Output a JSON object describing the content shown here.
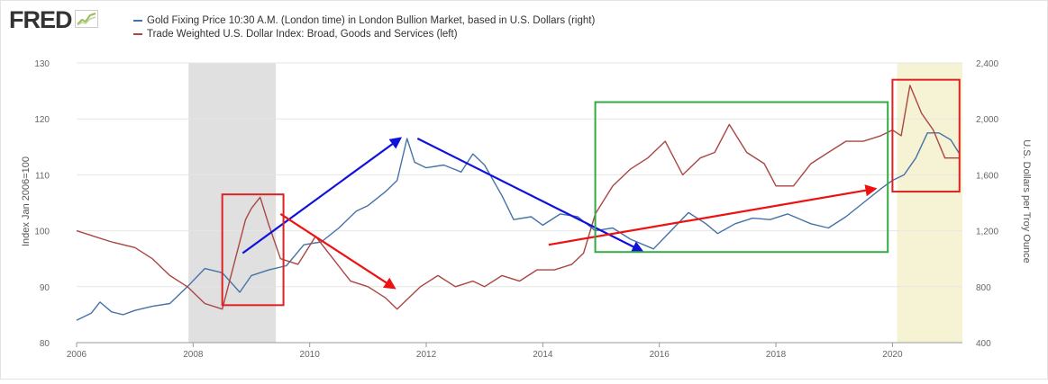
{
  "logo": {
    "text": "FRED"
  },
  "colors": {
    "gold": "#4572a7",
    "usd": "#aa4643",
    "recession": "#e0e0e0",
    "highlight": "#f6f2d4",
    "arrow_blue": "#1111dd",
    "arrow_red": "#ee1111",
    "box_red": "#dd2222",
    "box_green": "#33aa44",
    "grid": "#e6e6e6"
  },
  "chart_data": {
    "type": "line",
    "legend": [
      {
        "name": "Gold Fixing Price 10:30 A.M. (London time) in London Bullion Market, based in U.S. Dollars (right)",
        "color": "#4572a7"
      },
      {
        "name": "Trade Weighted U.S. Dollar Index: Broad, Goods and Services (left)",
        "color": "#aa4643"
      }
    ],
    "ylabel_left": "Index Jan 2006=100",
    "ylabel_right": "U.S. Dollars per Troy Ounce",
    "ylim_left": [
      80,
      130
    ],
    "ylim_right": [
      400,
      2400
    ],
    "xlim": [
      2006,
      2021.2
    ],
    "x_ticks": [
      "2006",
      "2008",
      "2010",
      "2012",
      "2014",
      "2016",
      "2018",
      "2020"
    ],
    "y_left_ticks": [
      "80",
      "90",
      "100",
      "110",
      "120",
      "130"
    ],
    "y_right_ticks": [
      "400",
      "800",
      "1,200",
      "1,600",
      "2,000",
      "2,400"
    ],
    "grid": "horizontal",
    "recession_bands": [
      [
        2007.92,
        2009.42
      ],
      [
        2020.08,
        2021.2
      ]
    ],
    "series": [
      {
        "name": "Gold Fixing Price 10:30 A.M. (London time) in London Bullion Market, based in U.S. Dollars (right)",
        "axis": "right",
        "x": [
          2006.0,
          2006.25,
          2006.4,
          2006.6,
          2006.8,
          2007.0,
          2007.3,
          2007.6,
          2007.9,
          2008.2,
          2008.5,
          2008.8,
          2009.0,
          2009.3,
          2009.6,
          2009.9,
          2010.2,
          2010.5,
          2010.8,
          2011.0,
          2011.3,
          2011.5,
          2011.67,
          2011.8,
          2012.0,
          2012.3,
          2012.6,
          2012.8,
          2013.0,
          2013.3,
          2013.5,
          2013.8,
          2014.0,
          2014.3,
          2014.6,
          2014.9,
          2015.2,
          2015.5,
          2015.9,
          2016.2,
          2016.5,
          2016.8,
          2017.0,
          2017.3,
          2017.6,
          2017.9,
          2018.2,
          2018.6,
          2018.9,
          2019.2,
          2019.5,
          2019.8,
          2020.0,
          2020.2,
          2020.4,
          2020.6,
          2020.8,
          2021.0,
          2021.15
        ],
        "y": [
          560,
          610,
          690,
          620,
          600,
          630,
          660,
          680,
          800,
          930,
          900,
          760,
          880,
          920,
          950,
          1100,
          1120,
          1220,
          1340,
          1380,
          1480,
          1560,
          1860,
          1690,
          1650,
          1670,
          1620,
          1750,
          1670,
          1450,
          1280,
          1300,
          1240,
          1320,
          1300,
          1200,
          1220,
          1140,
          1070,
          1200,
          1330,
          1250,
          1180,
          1250,
          1290,
          1280,
          1320,
          1250,
          1220,
          1300,
          1400,
          1500,
          1560,
          1600,
          1720,
          1900,
          1900,
          1850,
          1750
        ]
      },
      {
        "name": "Trade Weighted U.S. Dollar Index: Broad, Goods and Services (left)",
        "axis": "left",
        "x": [
          2006.0,
          2006.3,
          2006.6,
          2007.0,
          2007.3,
          2007.6,
          2007.9,
          2008.2,
          2008.5,
          2008.7,
          2008.9,
          2009.0,
          2009.15,
          2009.3,
          2009.5,
          2009.8,
          2010.1,
          2010.4,
          2010.7,
          2011.0,
          2011.3,
          2011.5,
          2011.7,
          2011.9,
          2012.2,
          2012.5,
          2012.8,
          2013.0,
          2013.3,
          2013.6,
          2013.9,
          2014.2,
          2014.5,
          2014.7,
          2014.9,
          2015.2,
          2015.5,
          2015.8,
          2016.1,
          2016.4,
          2016.7,
          2016.95,
          2017.2,
          2017.5,
          2017.8,
          2018.0,
          2018.3,
          2018.6,
          2018.9,
          2019.2,
          2019.5,
          2019.8,
          2020.0,
          2020.15,
          2020.3,
          2020.5,
          2020.7,
          2020.9,
          2021.15
        ],
        "y": [
          100,
          99,
          98,
          97,
          95,
          92,
          90,
          87,
          86,
          94,
          102,
          104,
          106,
          101,
          95,
          94,
          99,
          95,
          91,
          90,
          88,
          86,
          88,
          90,
          92,
          90,
          91,
          90,
          92,
          91,
          93,
          93,
          94,
          96,
          103,
          108,
          111,
          113,
          116,
          110,
          113,
          114,
          119,
          114,
          112,
          108,
          108,
          112,
          114,
          116,
          116,
          117,
          118,
          117,
          126,
          121,
          118,
          113,
          113
        ]
      }
    ],
    "annotations": [
      {
        "type": "arrow",
        "color": "blue",
        "from": [
          2008.85,
          1040
        ],
        "to": [
          2011.55,
          1860
        ]
      },
      {
        "type": "arrow",
        "color": "blue",
        "from": [
          2011.85,
          1860
        ],
        "to": [
          2015.7,
          1055
        ]
      },
      {
        "type": "arrow",
        "color": "red",
        "from": [
          2009.5,
          103
        ],
        "to": [
          2011.45,
          89.8
        ]
      },
      {
        "type": "arrow",
        "color": "red",
        "from": [
          2014.1,
          97.5
        ],
        "to": [
          2019.7,
          107.5
        ]
      },
      {
        "type": "box",
        "color": "red",
        "x0": 2008.5,
        "x1": 2009.55,
        "y0_left": 86.7,
        "y1_left": 106.5
      },
      {
        "type": "box",
        "color": "green",
        "x0": 2014.9,
        "x1": 2019.92,
        "y0_left": 96.2,
        "y1_left": 123
      },
      {
        "type": "box",
        "color": "red",
        "x0": 2020.0,
        "x1": 2021.15,
        "y0_left": 107,
        "y1_left": 127
      }
    ]
  }
}
